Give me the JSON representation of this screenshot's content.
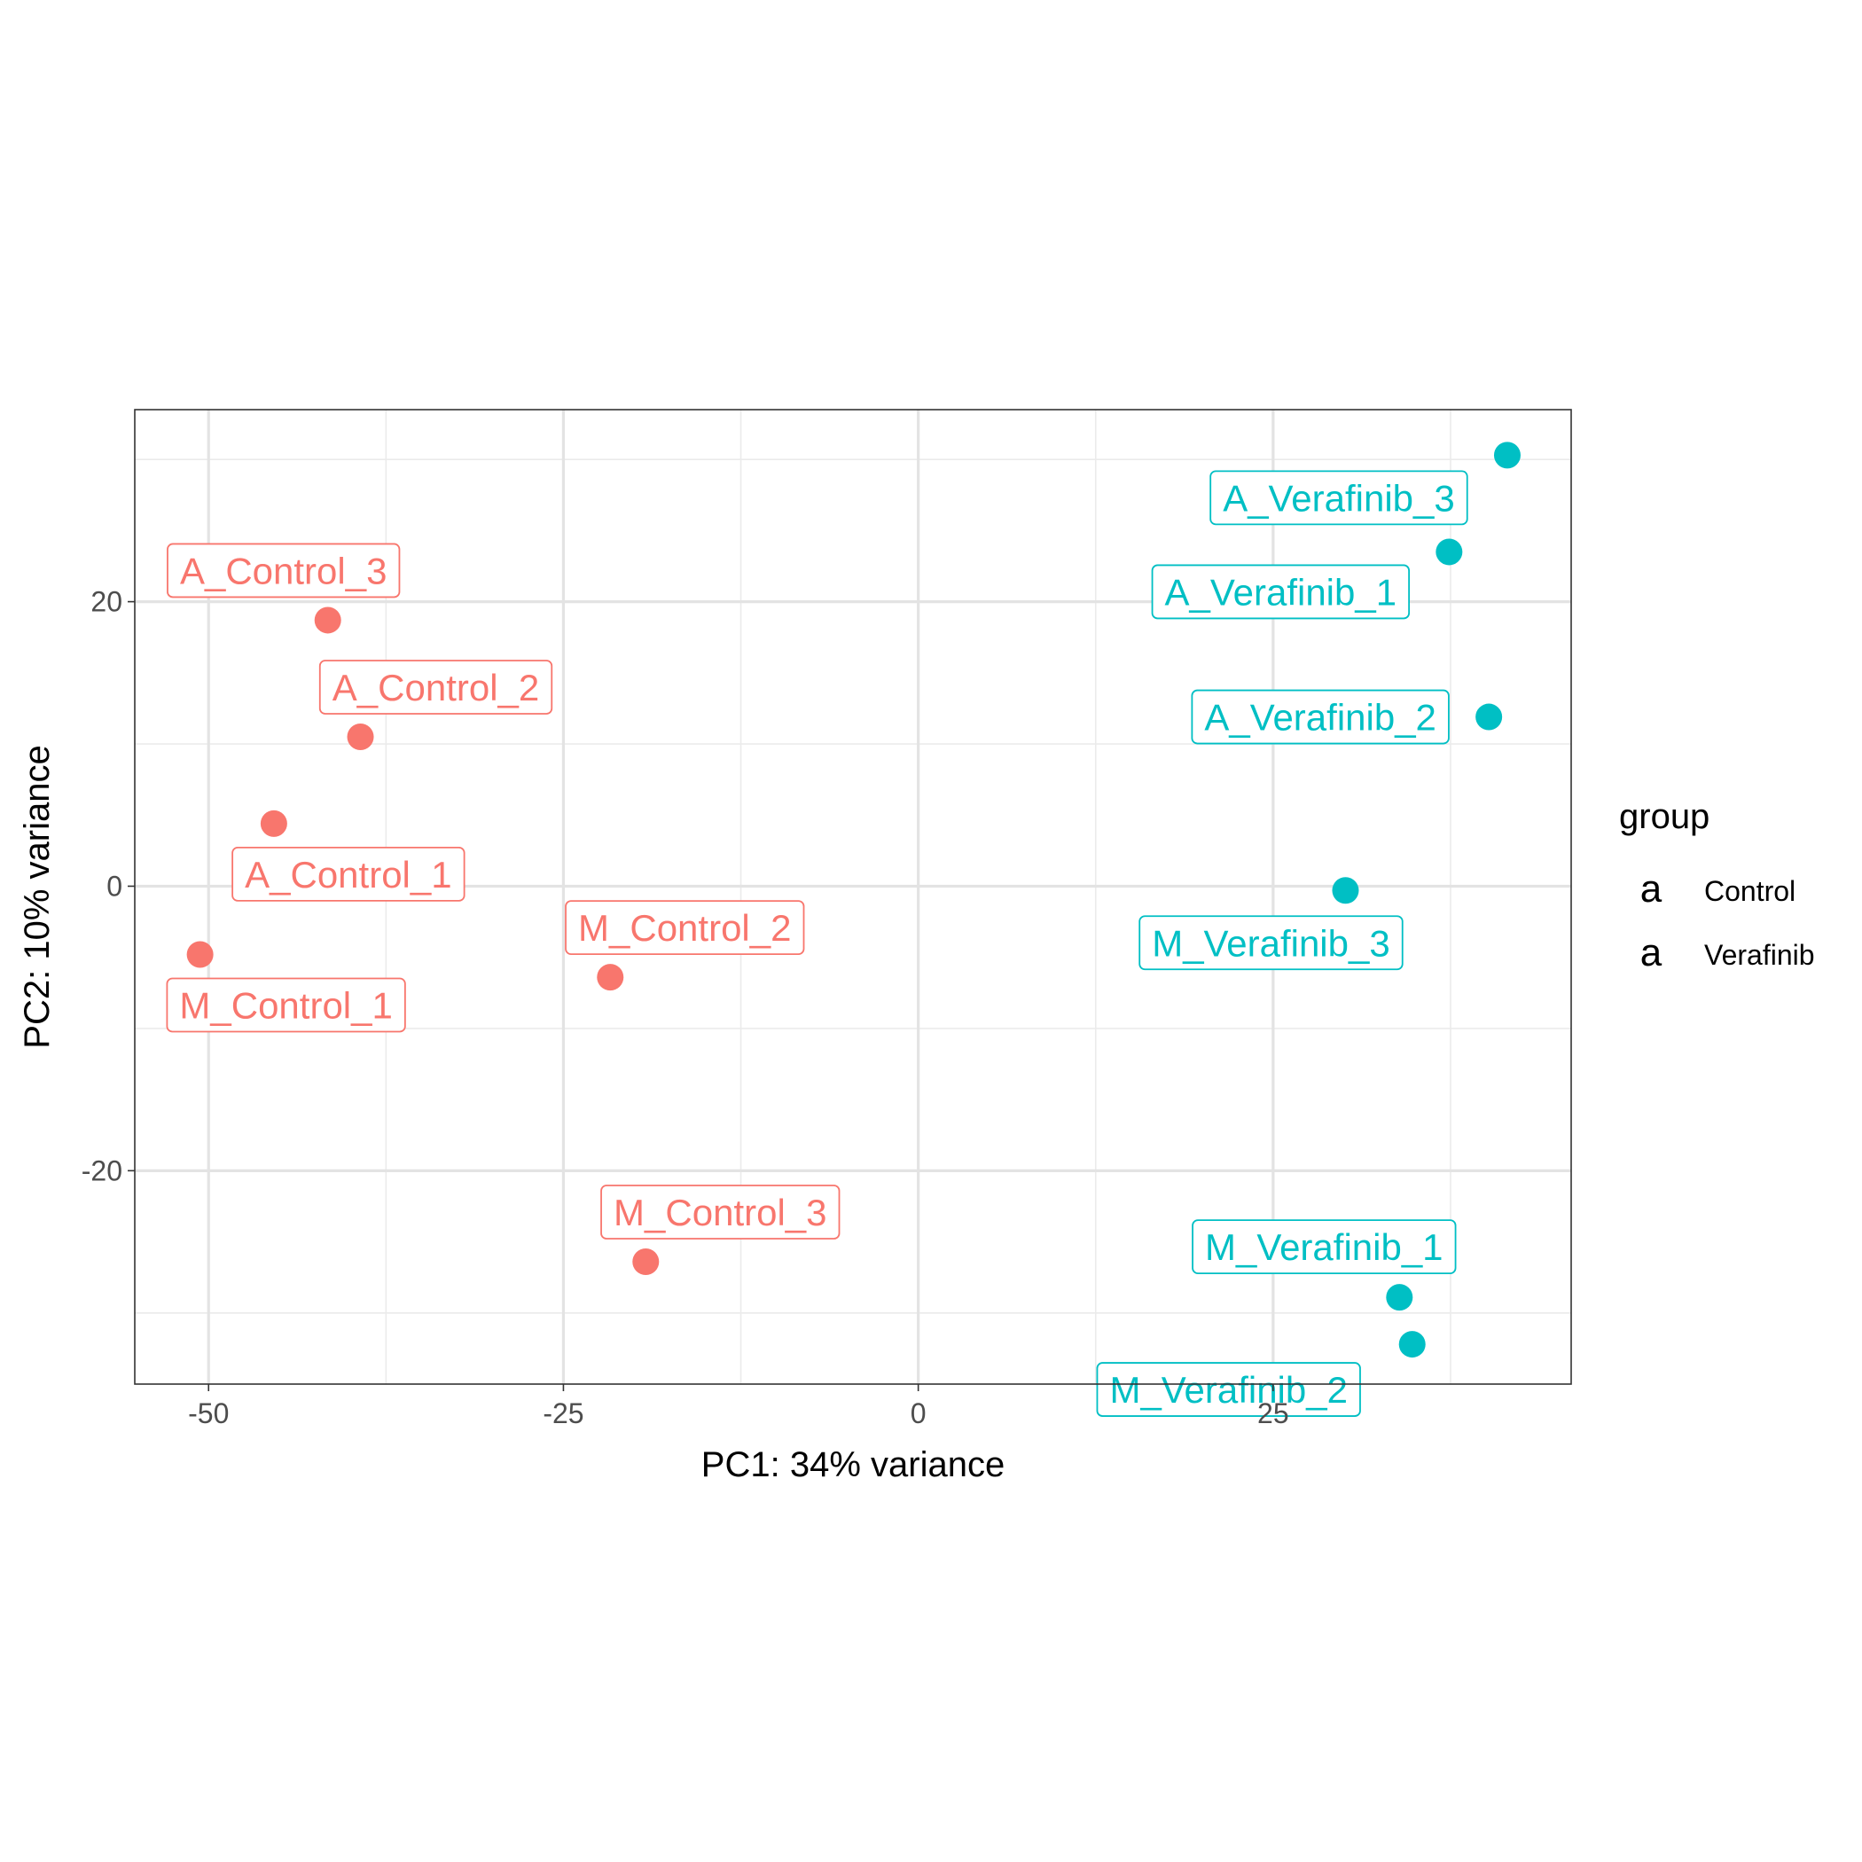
{
  "chart_data": {
    "type": "scatter",
    "title": "",
    "xlabel": "PC1: 34% variance",
    "ylabel": "PC2: 10% variance",
    "xlim": [
      -55.2,
      46
    ],
    "ylim": [
      -35,
      33.5
    ],
    "xticks": [
      -50,
      -25,
      0,
      25
    ],
    "xtick_labels": [
      "-50",
      "-25",
      "0",
      "25"
    ],
    "yticks": [
      -20,
      0,
      20
    ],
    "ytick_labels": [
      "-20",
      "0",
      "20"
    ],
    "grid": true,
    "legend": {
      "title": "group",
      "placement": "right",
      "symbol": "a",
      "entries": [
        {
          "label": "Control",
          "color": "#F8766D"
        },
        {
          "label": "Verafinib",
          "color": "#00BFC4"
        }
      ]
    },
    "series": [
      {
        "name": "Control",
        "color": "#F8766D",
        "points": [
          {
            "label": "A_Control_1",
            "x": -45.4,
            "y": 4.4
          },
          {
            "label": "A_Control_2",
            "x": -39.3,
            "y": 10.5
          },
          {
            "label": "A_Control_3",
            "x": -41.6,
            "y": 18.7
          },
          {
            "label": "M_Control_1",
            "x": -50.6,
            "y": -4.8
          },
          {
            "label": "M_Control_2",
            "x": -21.7,
            "y": -6.4
          },
          {
            "label": "M_Control_3",
            "x": -19.2,
            "y": -26.4
          }
        ]
      },
      {
        "name": "Verafinib",
        "color": "#00BFC4",
        "points": [
          {
            "label": "A_Verafinib_1",
            "x": 37.4,
            "y": 23.5
          },
          {
            "label": "A_Verafinib_2",
            "x": 40.2,
            "y": 11.9
          },
          {
            "label": "A_Verafinib_3",
            "x": 41.5,
            "y": 30.3
          },
          {
            "label": "M_Verafinib_1",
            "x": 33.9,
            "y": -28.9
          },
          {
            "label": "M_Verafinib_2",
            "x": 34.8,
            "y": -32.2
          },
          {
            "label": "M_Verafinib_3",
            "x": 30.1,
            "y": -0.3
          }
        ]
      }
    ]
  }
}
